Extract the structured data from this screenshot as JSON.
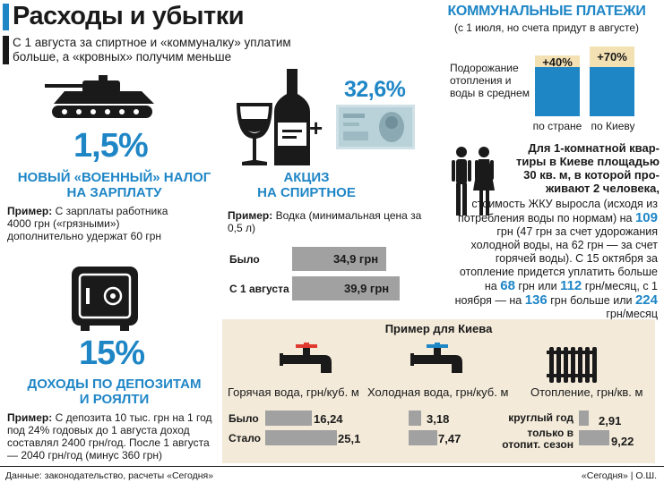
{
  "header": {
    "title": "Расходы и убытки",
    "lead": "С 1 августа за спиртное и «коммуналку» уплатим больше, а «кровных» получим меньше"
  },
  "military_tax": {
    "percent": "1,5%",
    "heading_line1": "НОВЫЙ «ВОЕННЫЙ» НАЛОГ",
    "heading_line2": "НА ЗАРПЛАТУ",
    "example_label": "Пример:",
    "example_text": "С зарплаты работника 4000 грн («грязными») дополнительно удержат 60 грн"
  },
  "deposits": {
    "percent": "15%",
    "heading_line1": "ДОХОДЫ ПО ДЕПОЗИТАМ",
    "heading_line2": "И РОЯЛТИ",
    "example_label": "Пример:",
    "example_text": "С депозита 10 тыс. грн на 1 год под 24% годовых до 1 августа доход составлял 2400 грн/год. После 1 августа — 2040 грн/год (минус 360 грн)"
  },
  "excise": {
    "percent": "32,6%",
    "plus": "+",
    "heading_line1": "АКЦИЗ",
    "heading_line2": "НА СПИРТНОЕ",
    "example_label": "Пример:",
    "example_text": "Водка (минимальная цена за 0,5 л)",
    "rows": [
      {
        "label": "Было",
        "value": "34,9 грн",
        "amount": 34.9
      },
      {
        "label": "С 1 августа",
        "value": "39,9 грн",
        "amount": 39.9
      }
    ]
  },
  "communal": {
    "title": "КОММУНАЛЬНЫЕ ПЛАТЕЖИ",
    "subtitle": "(с 1 июля, но счета придут в августе)",
    "side_label": "Подорожание отопления и воды в среднем",
    "bars": [
      {
        "label": "по стране",
        "value": "+40%",
        "percent": 40
      },
      {
        "label": "по Киеву",
        "value": "+70%",
        "percent": 70
      }
    ]
  },
  "apartment": {
    "bold_line1": "Для 1-комнатной квар-",
    "bold_line2": "тиры в Киеве площадью",
    "bold_line3": "30 кв. м, в которой про-",
    "bold_line4": "живают 2 человека,",
    "text_before_109": "стоимость ЖКУ выросла (исходя из потребления воды по нормам) на",
    "num_109": "109",
    "text_after_109": "грн (47 грн за счет удорожания холодной воды, на 62 грн — за счет горячей воды). С 15 октября за отопление придется уплатить больше на",
    "num_68": "68",
    "word_grn": "грн",
    "word_ili": "или",
    "num_112": "112",
    "text_after_112": "грн/месяц, с 1 ноября — на",
    "num_136": "136",
    "text_after_136": "грн больше или",
    "num_224": "224",
    "text_after_224": "грн/месяц"
  },
  "kiev": {
    "title": "Пример для Киева",
    "hot_label": "Горячая вода, грн/куб. м",
    "cold_label": "Холодная вода, грн/куб. м",
    "heat_label": "Отопление, грн/кв. м",
    "row_bylo": "Было",
    "row_stalo": "Стало",
    "hot": {
      "bylo": "16,24",
      "stalo": "25,1",
      "bylo_num": 16.24,
      "stalo_num": 25.1
    },
    "cold": {
      "bylo": "3,18",
      "stalo": "7,47",
      "bylo_num": 3.18,
      "stalo_num": 7.47
    },
    "heat_row1": "круглый год",
    "heat_row2": "только в отопит. сезон",
    "heat": {
      "year": "2,91",
      "season": "9,22",
      "year_num": 2.91,
      "season_num": 9.22
    }
  },
  "footer": {
    "source": "Данные: законодательство, расчеты «Сегодня»",
    "credit": "«Сегодня» | О.Ш."
  },
  "colors": {
    "accent": "#1f86c6",
    "bar_grey": "#a1a1a1",
    "box_bg": "#f3ead9",
    "tag_bg": "#f3e0b3"
  }
}
